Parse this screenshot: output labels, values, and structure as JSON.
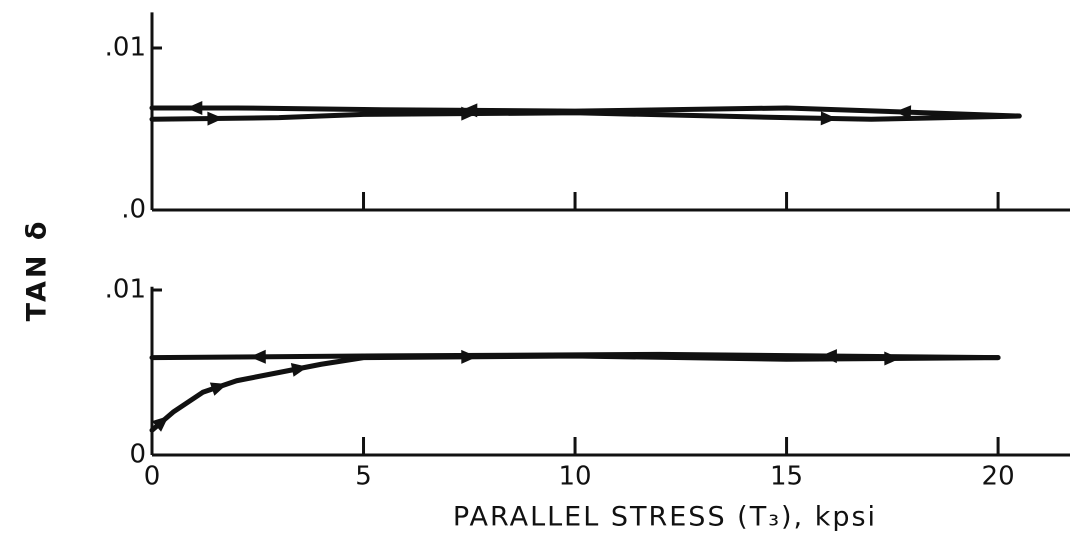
{
  "chart_data": [
    {
      "type": "line",
      "ylabel": "TAN δ",
      "xlim": [
        0,
        21.7
      ],
      "ylim": [
        0,
        0.0122
      ],
      "yticks": [
        {
          "value": 0,
          "label": ".0"
        },
        {
          "value": 0.01,
          "label": ".01"
        }
      ],
      "series": [
        {
          "color": "#111111",
          "x": [
            0,
            3,
            5,
            10,
            15,
            17,
            20.5
          ],
          "values": [
            0.0056,
            0.0057,
            0.0059,
            0.006,
            0.0057,
            0.0056,
            0.0058
          ]
        },
        {
          "color": "#111111",
          "x": [
            20.5,
            15,
            10,
            5,
            2,
            0
          ],
          "values": [
            0.0058,
            0.0063,
            0.0061,
            0.0062,
            0.0063,
            0.0063
          ]
        }
      ]
    },
    {
      "type": "line",
      "xlabel": "PARALLEL STRESS (T₃), kpsi",
      "xlim": [
        0,
        21.7
      ],
      "ylim": [
        0,
        0.0102
      ],
      "xticks": [
        0,
        5,
        10,
        15,
        20
      ],
      "yticks": [
        0,
        {
          "value": 0.01,
          "label": ".01"
        }
      ],
      "series": [
        {
          "color": "#111111",
          "x": [
            0,
            0.5,
            1.2,
            2,
            3,
            4,
            5,
            10,
            15,
            20
          ],
          "values": [
            0.0015,
            0.0026,
            0.0038,
            0.0045,
            0.005,
            0.0055,
            0.0059,
            0.006,
            0.0058,
            0.0059
          ]
        },
        {
          "color": "#111111",
          "x": [
            20,
            12,
            5,
            0
          ],
          "values": [
            0.0059,
            0.0061,
            0.006,
            0.0059
          ]
        }
      ]
    }
  ]
}
